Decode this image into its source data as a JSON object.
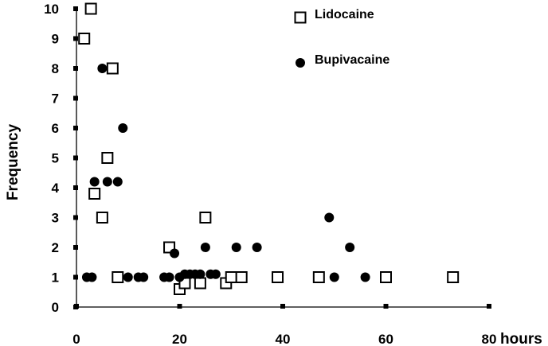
{
  "chart_data": {
    "type": "scatter",
    "title": "",
    "xlabel": "hours",
    "ylabel": "Frequency",
    "xlim": [
      0,
      80
    ],
    "ylim": [
      0,
      10
    ],
    "x_ticks": [
      "0",
      "20",
      "40",
      "60",
      "80"
    ],
    "y_ticks": [
      "0",
      "1",
      "2",
      "3",
      "4",
      "5",
      "6",
      "7",
      "8",
      "9",
      "10"
    ],
    "grid": false,
    "legend_placement": "top-right",
    "series": [
      {
        "name": "Lidocaine",
        "marker": "open-square",
        "color": "#000000",
        "points": [
          {
            "x": 1.5,
            "y": 9
          },
          {
            "x": 2.8,
            "y": 10
          },
          {
            "x": 3.5,
            "y": 3.8
          },
          {
            "x": 5,
            "y": 3
          },
          {
            "x": 6,
            "y": 5
          },
          {
            "x": 7,
            "y": 8
          },
          {
            "x": 8,
            "y": 1
          },
          {
            "x": 18,
            "y": 2
          },
          {
            "x": 20,
            "y": 0.6
          },
          {
            "x": 21,
            "y": 0.8
          },
          {
            "x": 24,
            "y": 0.8
          },
          {
            "x": 25,
            "y": 3
          },
          {
            "x": 29,
            "y": 0.8
          },
          {
            "x": 30,
            "y": 1
          },
          {
            "x": 32,
            "y": 1
          },
          {
            "x": 39,
            "y": 1
          },
          {
            "x": 47,
            "y": 1
          },
          {
            "x": 60,
            "y": 1
          },
          {
            "x": 73,
            "y": 1
          }
        ]
      },
      {
        "name": "Bupivacaine",
        "marker": "filled-circle",
        "color": "#000000",
        "points": [
          {
            "x": 2,
            "y": 1
          },
          {
            "x": 3,
            "y": 1
          },
          {
            "x": 3.5,
            "y": 4.2
          },
          {
            "x": 5,
            "y": 8
          },
          {
            "x": 6,
            "y": 4.2
          },
          {
            "x": 8,
            "y": 4.2
          },
          {
            "x": 9,
            "y": 6
          },
          {
            "x": 10,
            "y": 1
          },
          {
            "x": 12,
            "y": 1
          },
          {
            "x": 13,
            "y": 1
          },
          {
            "x": 17,
            "y": 1
          },
          {
            "x": 18,
            "y": 1
          },
          {
            "x": 19,
            "y": 1.8
          },
          {
            "x": 20,
            "y": 1
          },
          {
            "x": 21,
            "y": 1.1
          },
          {
            "x": 22,
            "y": 1.1
          },
          {
            "x": 23,
            "y": 1.1
          },
          {
            "x": 24,
            "y": 1.1
          },
          {
            "x": 25,
            "y": 2
          },
          {
            "x": 26,
            "y": 1.1
          },
          {
            "x": 27,
            "y": 1.1
          },
          {
            "x": 31,
            "y": 2
          },
          {
            "x": 35,
            "y": 2
          },
          {
            "x": 49,
            "y": 3
          },
          {
            "x": 50,
            "y": 1
          },
          {
            "x": 53,
            "y": 2
          },
          {
            "x": 56,
            "y": 1
          }
        ]
      }
    ]
  }
}
